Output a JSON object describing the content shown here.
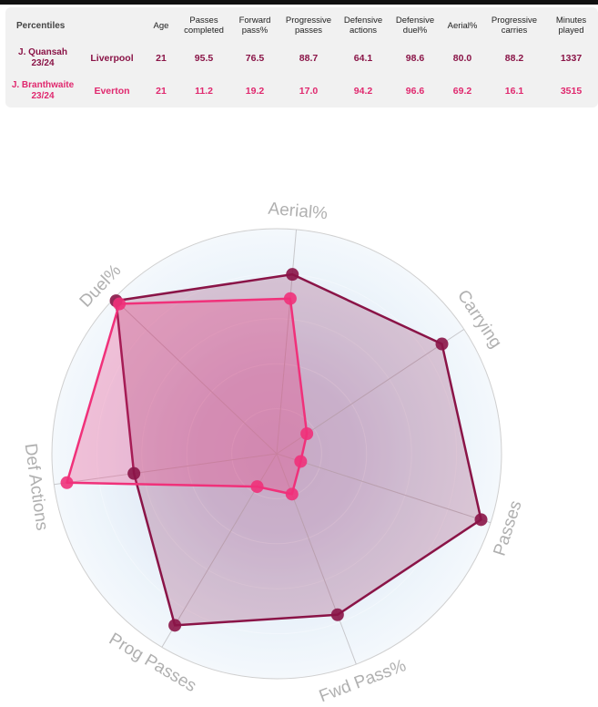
{
  "table": {
    "corner_label": "Percentiles",
    "columns": [
      "",
      "Age",
      "Passes completed",
      "Forward pass%",
      "Progressive passes",
      "Defensive actions",
      "Defensive duel%",
      "Aerial%",
      "Progressive carries",
      "Minutes played"
    ],
    "rows": [
      {
        "player": "J. Quansah 23/24",
        "club": "Liverpool",
        "age": "21",
        "values": [
          "95.5",
          "76.5",
          "88.7",
          "64.1",
          "98.6",
          "80.0",
          "88.2",
          "1337"
        ]
      },
      {
        "player": "J. Branthwaite 23/24",
        "club": "Everton",
        "age": "21",
        "values": [
          "11.2",
          "19.2",
          "17.0",
          "94.2",
          "96.6",
          "69.2",
          "16.1",
          "3515"
        ]
      }
    ]
  },
  "chart_data": {
    "type": "radar",
    "axes": [
      "Aerial%",
      "Carrying",
      "Passes",
      "Fwd Pass%",
      "Prog Passes",
      "Def Actions",
      "Duel%"
    ],
    "range": [
      0,
      100
    ],
    "series": [
      {
        "name": "J. Quansah 23/24",
        "color": "#8a1447",
        "values": [
          80.0,
          88.2,
          95.5,
          76.5,
          88.7,
          64.1,
          98.6
        ]
      },
      {
        "name": "J. Branthwaite 23/24",
        "color": "#f0317a",
        "values": [
          69.2,
          16.1,
          11.2,
          19.2,
          17.0,
          94.2,
          96.6
        ]
      }
    ]
  }
}
